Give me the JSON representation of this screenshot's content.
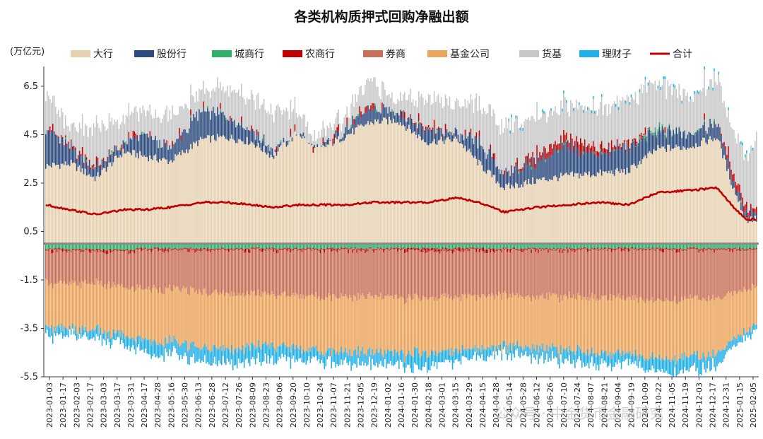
{
  "chart_data": {
    "type": "bar",
    "title": "各类机构质押式回购净融出额",
    "unit_label": "(万亿元)",
    "ylim": [
      -5.5,
      7.2
    ],
    "y_ticks": [
      6.5,
      4.5,
      2.5,
      0.5,
      -1.5,
      -3.5,
      -5.5
    ],
    "y_tick_labels": [
      "6.5",
      "4.5",
      "2.5",
      "0.5",
      "-1.5",
      "-3.5",
      "-5.5"
    ],
    "x_ticks": [
      "2023-01-03",
      "2023-01-17",
      "2023-02-03",
      "2023-02-17",
      "2023-03-03",
      "2023-03-17",
      "2023-03-31",
      "2023-04-17",
      "2023-04-28",
      "2023-05-16",
      "2023-05-30",
      "2023-06-13",
      "2023-06-28",
      "2023-07-12",
      "2023-07-26",
      "2023-08-09",
      "2023-08-23",
      "2023-09-06",
      "2023-09-20",
      "2023-10-10",
      "2023-10-24",
      "2023-11-07",
      "2023-11-21",
      "2023-12-05",
      "2023-12-19",
      "2024-01-02",
      "2024-01-16",
      "2024-01-30",
      "2024-02-18",
      "2024-03-01",
      "2024-03-15",
      "2024-03-29",
      "2024-04-15",
      "2024-04-28",
      "2024-05-14",
      "2024-05-28",
      "2024-06-12",
      "2024-06-26",
      "2024-07-10",
      "2024-07-24",
      "2024-08-07",
      "2024-08-21",
      "2024-09-04",
      "2024-09-19",
      "2024-10-09",
      "2024-10-22",
      "2024-11-05",
      "2024-11-19",
      "2024-12-03",
      "2024-12-17",
      "2024-12-31",
      "2025-01-15",
      "2025-02-05"
    ],
    "legend": [
      {
        "name": "大行",
        "color": "#e6d2b3",
        "kind": "bar"
      },
      {
        "name": "股份行",
        "color": "#2c4b7e",
        "kind": "bar"
      },
      {
        "name": "城商行",
        "color": "#2eb06a",
        "kind": "bar"
      },
      {
        "name": "农商行",
        "color": "#c00000",
        "kind": "bar"
      },
      {
        "name": "券商",
        "color": "#c87058",
        "kind": "bar"
      },
      {
        "name": "基金公司",
        "color": "#eba45c",
        "kind": "bar"
      },
      {
        "name": "货基",
        "color": "#c8c8c8",
        "kind": "bar"
      },
      {
        "name": "理财子",
        "color": "#22b0e8",
        "kind": "bar"
      },
      {
        "name": "合计",
        "color": "#c00000",
        "kind": "line"
      }
    ],
    "anchor_points": [
      {
        "t": 0.0,
        "big": 3.2,
        "jsh": 1.6,
        "cs": 0.0,
        "ns": 0.0,
        "hj": 1.5,
        "total": 1.6,
        "qs": -1.3,
        "jj": -1.8,
        "lc": -0.3,
        "csneg": -0.2,
        "nsneg": -0.05
      },
      {
        "t": 0.035,
        "big": 3.3,
        "jsh": 0.6,
        "cs": 0.0,
        "ns": 0.1,
        "hj": 0.7,
        "total": 1.4,
        "qs": -1.4,
        "jj": -1.9,
        "lc": -0.3,
        "csneg": -0.25,
        "nsneg": -0.05
      },
      {
        "t": 0.07,
        "big": 2.7,
        "jsh": 0.4,
        "cs": 0.0,
        "ns": 0.1,
        "hj": 1.6,
        "total": 1.2,
        "qs": -1.3,
        "jj": -1.9,
        "lc": -0.35,
        "csneg": -0.25,
        "nsneg": -0.05
      },
      {
        "t": 0.11,
        "big": 3.8,
        "jsh": 0.3,
        "cs": 0.0,
        "ns": 0.0,
        "hj": 1.0,
        "total": 1.4,
        "qs": -1.5,
        "jj": -2.0,
        "lc": -0.4,
        "csneg": -0.25,
        "nsneg": -0.05
      },
      {
        "t": 0.14,
        "big": 3.6,
        "jsh": 0.9,
        "cs": 0.0,
        "ns": 0.0,
        "hj": 0.9,
        "total": 1.4,
        "qs": -1.6,
        "jj": -2.1,
        "lc": -0.5,
        "csneg": -0.2,
        "nsneg": -0.05
      },
      {
        "t": 0.175,
        "big": 3.4,
        "jsh": 0.5,
        "cs": 0.0,
        "ns": 0.0,
        "hj": 1.3,
        "total": 1.5,
        "qs": -1.6,
        "jj": -2.2,
        "lc": -0.5,
        "csneg": -0.2,
        "nsneg": -0.05
      },
      {
        "t": 0.22,
        "big": 4.3,
        "jsh": 1.2,
        "cs": 0.0,
        "ns": 0.0,
        "hj": 0.7,
        "total": 1.7,
        "qs": -1.7,
        "jj": -2.3,
        "lc": -0.6,
        "csneg": -0.2,
        "nsneg": -0.05
      },
      {
        "t": 0.255,
        "big": 4.4,
        "jsh": 0.9,
        "cs": 0.0,
        "ns": 0.0,
        "hj": 1.2,
        "total": 1.7,
        "qs": -1.8,
        "jj": -2.3,
        "lc": -0.6,
        "csneg": -0.2,
        "nsneg": -0.05
      },
      {
        "t": 0.29,
        "big": 4.2,
        "jsh": 0.5,
        "cs": 0.0,
        "ns": 0.0,
        "hj": 1.3,
        "total": 1.6,
        "qs": -1.8,
        "jj": -2.2,
        "lc": -0.6,
        "csneg": -0.2,
        "nsneg": -0.05
      },
      {
        "t": 0.32,
        "big": 3.6,
        "jsh": 0.2,
        "cs": 0.0,
        "ns": 0.0,
        "hj": 1.6,
        "total": 1.5,
        "qs": -1.8,
        "jj": -2.1,
        "lc": -0.6,
        "csneg": -0.2,
        "nsneg": -0.05
      },
      {
        "t": 0.355,
        "big": 4.6,
        "jsh": 0.0,
        "cs": 0.0,
        "ns": 0.0,
        "hj": 0.8,
        "total": 1.6,
        "qs": -1.9,
        "jj": -2.2,
        "lc": -0.5,
        "csneg": -0.2,
        "nsneg": -0.05
      },
      {
        "t": 0.38,
        "big": 3.8,
        "jsh": 0.0,
        "cs": 0.0,
        "ns": 0.0,
        "hj": 0.4,
        "total": 1.6,
        "qs": -1.9,
        "jj": -2.2,
        "lc": -0.4,
        "csneg": -0.2,
        "nsneg": -0.05
      },
      {
        "t": 0.425,
        "big": 4.5,
        "jsh": 0.3,
        "cs": 0.0,
        "ns": 0.0,
        "hj": 0.6,
        "total": 1.6,
        "qs": -1.9,
        "jj": -2.3,
        "lc": -0.5,
        "csneg": -0.2,
        "nsneg": -0.05
      },
      {
        "t": 0.455,
        "big": 5.0,
        "jsh": 0.5,
        "cs": 0.0,
        "ns": 0.0,
        "hj": 1.0,
        "total": 1.7,
        "qs": -1.9,
        "jj": -2.3,
        "lc": -0.5,
        "csneg": -0.2,
        "nsneg": -0.05
      },
      {
        "t": 0.495,
        "big": 5.1,
        "jsh": 0.4,
        "cs": 0.0,
        "ns": 0.0,
        "hj": 0.5,
        "total": 1.7,
        "qs": -2.0,
        "jj": -2.3,
        "lc": -0.5,
        "csneg": -0.2,
        "nsneg": -0.05
      },
      {
        "t": 0.535,
        "big": 4.2,
        "jsh": 0.5,
        "cs": 0.0,
        "ns": 0.1,
        "hj": 1.2,
        "total": 1.7,
        "qs": -1.9,
        "jj": -2.3,
        "lc": -0.6,
        "csneg": -0.2,
        "nsneg": -0.1
      },
      {
        "t": 0.58,
        "big": 4.3,
        "jsh": 0.2,
        "cs": 0.0,
        "ns": 0.0,
        "hj": 1.2,
        "total": 1.9,
        "qs": -1.9,
        "jj": -2.2,
        "lc": -0.4,
        "csneg": -0.2,
        "nsneg": -0.05
      },
      {
        "t": 0.61,
        "big": 3.3,
        "jsh": 0.8,
        "cs": 0.0,
        "ns": 0.0,
        "hj": 1.5,
        "total": 1.7,
        "qs": -1.9,
        "jj": -2.2,
        "lc": -0.4,
        "csneg": -0.2,
        "nsneg": -0.05
      },
      {
        "t": 0.645,
        "big": 2.3,
        "jsh": 0.6,
        "cs": 0.0,
        "ns": 0.0,
        "hj": 1.9,
        "total": 1.3,
        "qs": -1.8,
        "jj": -2.1,
        "lc": -0.3,
        "csneg": -0.2,
        "nsneg": -0.05
      },
      {
        "t": 0.69,
        "big": 2.6,
        "jsh": 0.8,
        "cs": 0.0,
        "ns": 0.2,
        "hj": 1.6,
        "total": 1.5,
        "qs": -1.9,
        "jj": -2.1,
        "lc": -0.4,
        "csneg": -0.2,
        "nsneg": -0.05
      },
      {
        "t": 0.735,
        "big": 2.8,
        "jsh": 1.2,
        "cs": 0.0,
        "ns": 0.3,
        "hj": 1.3,
        "total": 1.6,
        "qs": -1.9,
        "jj": -2.2,
        "lc": -0.5,
        "csneg": -0.2,
        "nsneg": -0.05
      },
      {
        "t": 0.78,
        "big": 2.9,
        "jsh": 0.8,
        "cs": 0.0,
        "ns": 0.2,
        "hj": 1.6,
        "total": 1.7,
        "qs": -2.0,
        "jj": -2.3,
        "lc": -0.5,
        "csneg": -0.2,
        "nsneg": -0.05
      },
      {
        "t": 0.82,
        "big": 3.0,
        "jsh": 1.0,
        "cs": 0.0,
        "ns": 0.1,
        "hj": 1.7,
        "total": 1.6,
        "qs": -2.0,
        "jj": -2.3,
        "lc": -0.4,
        "csneg": -0.2,
        "nsneg": -0.05
      },
      {
        "t": 0.86,
        "big": 3.9,
        "jsh": 0.7,
        "cs": 0.1,
        "ns": 0.0,
        "hj": 1.9,
        "total": 2.1,
        "qs": -2.1,
        "jj": -2.4,
        "lc": -0.5,
        "csneg": -0.2,
        "nsneg": -0.05
      },
      {
        "t": 0.905,
        "big": 4.0,
        "jsh": 0.6,
        "cs": 0.0,
        "ns": 0.0,
        "hj": 1.5,
        "total": 2.2,
        "qs": -2.0,
        "jj": -2.4,
        "lc": -0.6,
        "csneg": -0.2,
        "nsneg": -0.05
      },
      {
        "t": 0.945,
        "big": 4.4,
        "jsh": 0.6,
        "cs": 0.0,
        "ns": 0.0,
        "hj": 1.8,
        "total": 2.3,
        "qs": -2.0,
        "jj": -2.3,
        "lc": -0.5,
        "csneg": -0.2,
        "nsneg": -0.05
      },
      {
        "t": 0.965,
        "big": 2.5,
        "jsh": 0.3,
        "cs": 0.0,
        "ns": 0.3,
        "hj": 1.7,
        "total": 1.6,
        "qs": -1.8,
        "jj": -1.9,
        "lc": -0.3,
        "csneg": -0.2,
        "nsneg": -0.05
      },
      {
        "t": 0.985,
        "big": 1.0,
        "jsh": 0.3,
        "cs": 0.0,
        "ns": 0.3,
        "hj": 2.1,
        "total": 1.0,
        "qs": -1.6,
        "jj": -1.7,
        "lc": -0.2,
        "csneg": -0.2,
        "nsneg": -0.05
      },
      {
        "t": 1.0,
        "big": 1.0,
        "jsh": 0.2,
        "cs": 0.0,
        "ns": 0.1,
        "hj": 2.9,
        "total": 1.0,
        "qs": -1.5,
        "jj": -1.6,
        "lc": -0.3,
        "csneg": -0.2,
        "nsneg": -0.05
      }
    ],
    "series_order_positive": [
      "大行",
      "股份行",
      "城商行",
      "农商行",
      "货基",
      "理财子"
    ],
    "series_order_negative": [
      "城商行",
      "农商行",
      "券商",
      "基金公司",
      "理财子"
    ],
    "bar_count": 506
  },
  "watermark": {
    "text": "公众号 · 中金货币金融研究"
  }
}
